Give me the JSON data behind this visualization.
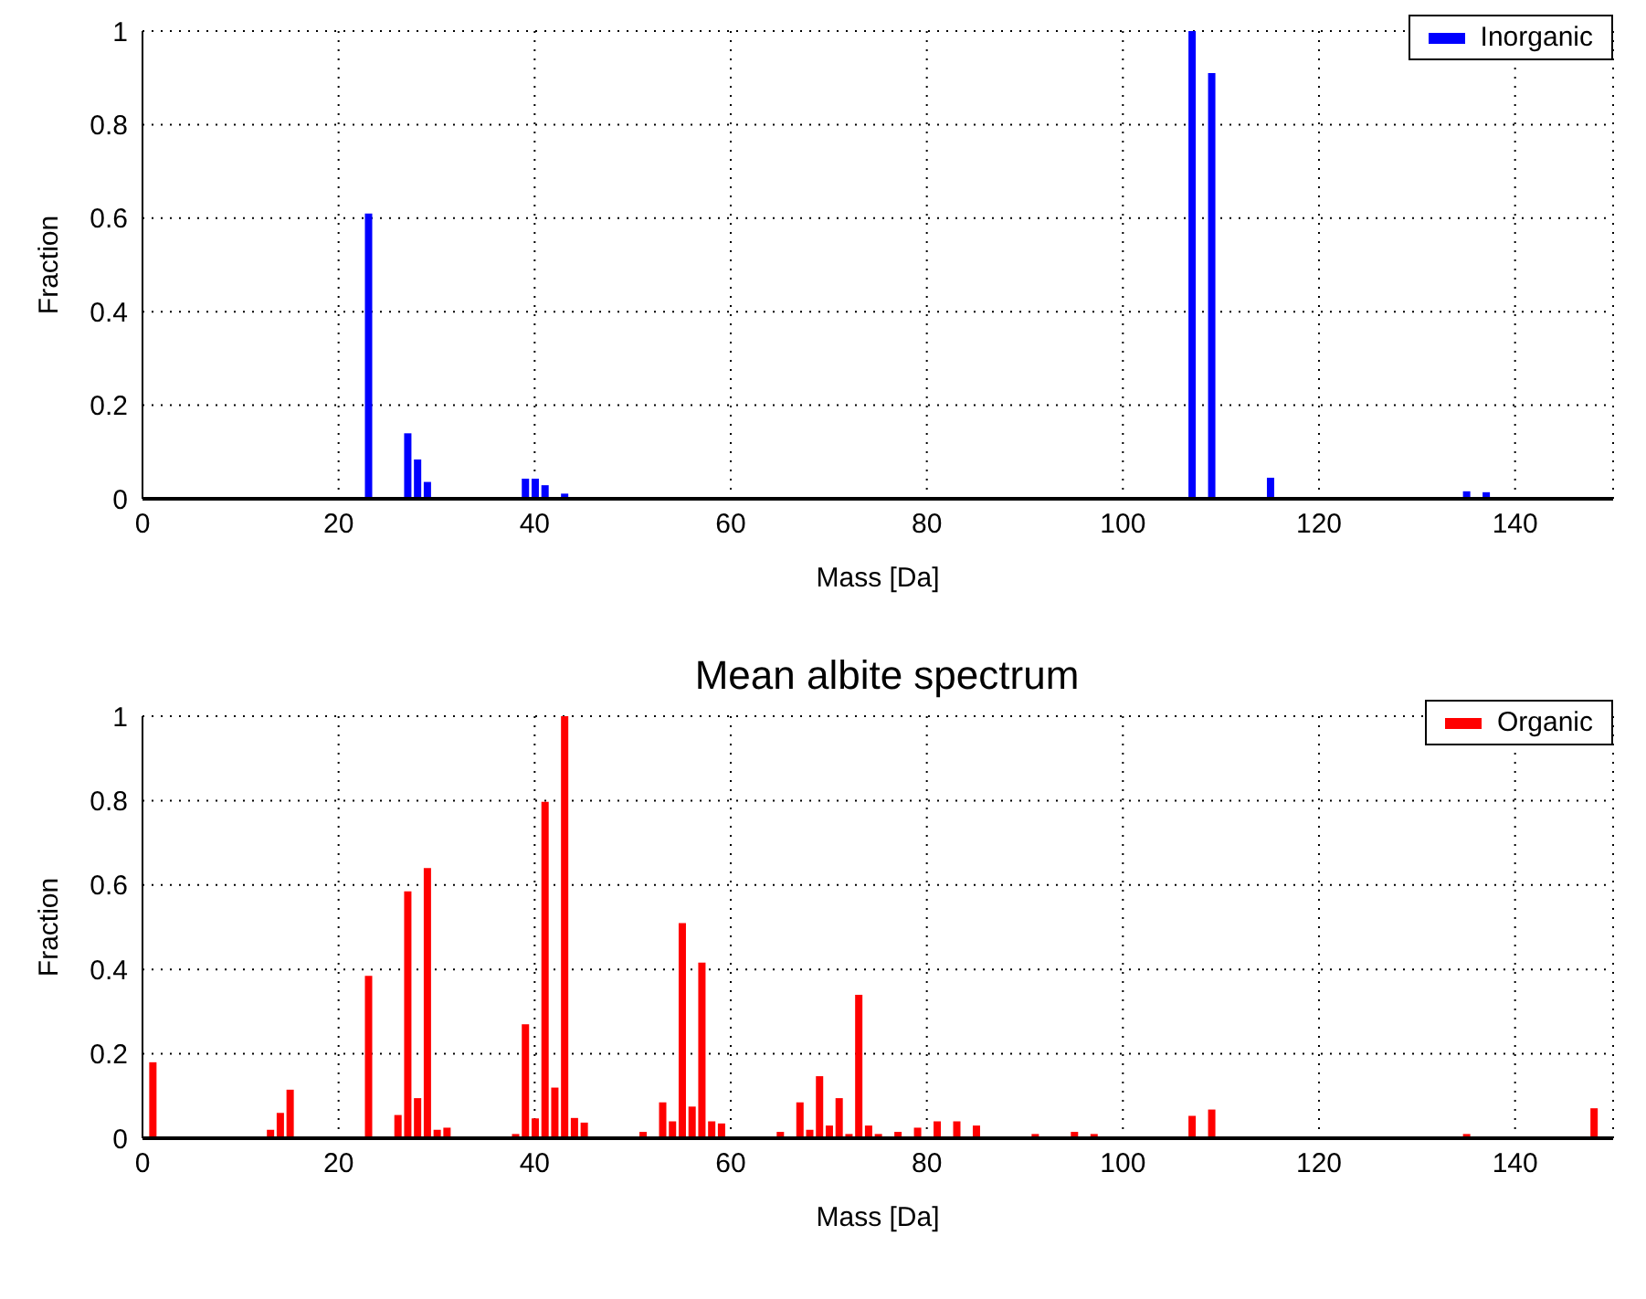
{
  "chart_data": [
    {
      "type": "bar",
      "x": [
        23,
        27,
        28,
        29,
        39,
        40,
        41,
        43,
        107,
        109,
        115,
        135,
        137
      ],
      "series": [
        {
          "name": "Inorganic",
          "color": "#0000ff",
          "values": [
            0.61,
            0.14,
            0.084,
            0.036,
            0.043,
            0.043,
            0.029,
            0.011,
            1.0,
            0.91,
            0.045,
            0.016,
            0.014
          ]
        }
      ],
      "xlabel": "Mass [Da]",
      "ylabel": "Fraction",
      "xlim": [
        0,
        150
      ],
      "xticks": [
        0,
        20,
        40,
        60,
        80,
        100,
        120,
        140
      ],
      "ylim": [
        0,
        1
      ],
      "yticks": [
        0,
        0.2,
        0.4,
        0.6,
        0.8,
        1
      ],
      "grid": true,
      "legend": "top right"
    },
    {
      "type": "bar",
      "title": "Mean albite spectrum",
      "x": [
        1,
        13,
        14,
        15,
        23,
        26,
        27,
        28,
        29,
        30,
        31,
        38,
        39,
        40,
        41,
        42,
        43,
        44,
        45,
        51,
        53,
        54,
        55,
        56,
        57,
        58,
        59,
        65,
        67,
        68,
        69,
        70,
        71,
        72,
        73,
        74,
        75,
        77,
        79,
        81,
        83,
        85,
        91,
        95,
        97,
        107,
        109,
        135,
        148
      ],
      "series": [
        {
          "name": "Organic",
          "color": "#ff0000",
          "values": [
            0.18,
            0.02,
            0.06,
            0.115,
            0.385,
            0.055,
            0.585,
            0.095,
            0.64,
            0.02,
            0.025,
            0.01,
            0.27,
            0.047,
            0.797,
            0.12,
            1.0,
            0.048,
            0.037,
            0.015,
            0.085,
            0.04,
            0.51,
            0.075,
            0.416,
            0.04,
            0.035,
            0.015,
            0.085,
            0.02,
            0.147,
            0.03,
            0.095,
            0.01,
            0.34,
            0.03,
            0.01,
            0.015,
            0.025,
            0.04,
            0.04,
            0.03,
            0.01,
            0.015,
            0.01,
            0.053,
            0.068,
            0.01,
            0.071
          ]
        }
      ],
      "xlabel": "Mass [Da]",
      "ylabel": "Fraction",
      "xlim": [
        0,
        150
      ],
      "xticks": [
        0,
        20,
        40,
        60,
        80,
        100,
        120,
        140
      ],
      "ylim": [
        0,
        1
      ],
      "yticks": [
        0,
        0.2,
        0.4,
        0.6,
        0.8,
        1
      ],
      "grid": true,
      "legend": "top right"
    }
  ]
}
